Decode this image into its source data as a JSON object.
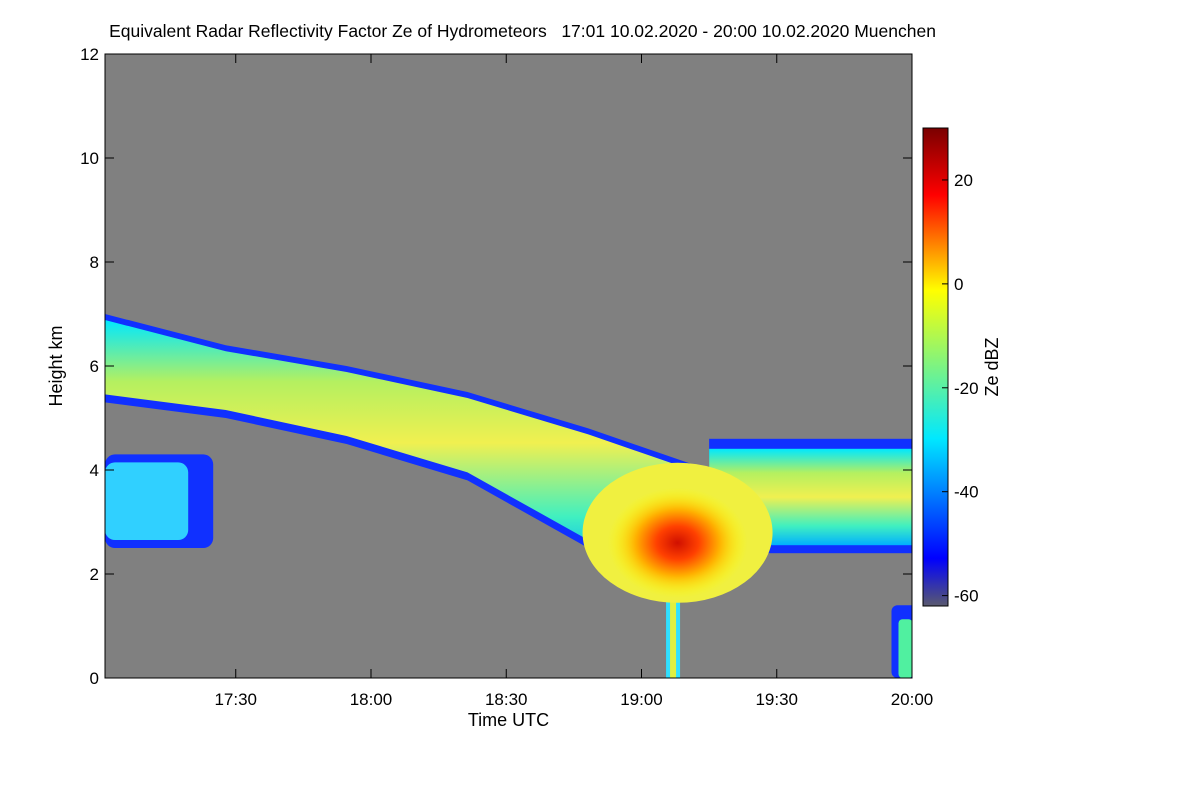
{
  "chart_data": {
    "type": "heatmap",
    "title": "Equivalent Radar Reflectivity Factor Ze of Hydrometeors   17:01 10.02.2020 - 20:00 10.02.2020 Muenchen",
    "xlabel": "Time UTC",
    "ylabel": "Height km",
    "colorbar_label": "Ze dBZ",
    "x_range": [
      "17:01",
      "20:00"
    ],
    "x_ticks": [
      "17:30",
      "18:00",
      "18:30",
      "19:00",
      "19:30",
      "20:00"
    ],
    "y_range": [
      0,
      12
    ],
    "y_ticks": [
      0,
      2,
      4,
      6,
      8,
      10,
      12
    ],
    "colorbar_range": [
      -62,
      30
    ],
    "colorbar_ticks": [
      -60,
      -40,
      -20,
      0,
      20
    ],
    "background_color": "#808080",
    "colormap": [
      "#5a5a6e",
      "#0000ff",
      "#00e8ff",
      "#ffff00",
      "#ff0000",
      "#7a0000"
    ],
    "features": [
      {
        "name": "upper stratiform layer",
        "time_start": "17:01",
        "time_end": "19:15",
        "height_bottom_km": [
          5.3,
          5.0,
          4.5,
          3.8,
          2.5,
          2.0
        ],
        "height_top_km": [
          7.0,
          6.4,
          6.0,
          5.5,
          4.8,
          4.0
        ],
        "max_ze_dbz": -5
      },
      {
        "name": "low-level echo",
        "time_start": "17:01",
        "time_end": "17:25",
        "height_bottom_km": 2.5,
        "height_top_km": 4.3,
        "max_ze_dbz": -25
      },
      {
        "name": "convective core",
        "time_center": "19:08",
        "height_center_km": 2.6,
        "max_ze_dbz": 20
      },
      {
        "name": "precipitation shaft",
        "time_center": "19:07",
        "height_bottom_km": 0,
        "height_top_km": 2.0,
        "max_ze_dbz": -5
      },
      {
        "name": "eastern layer",
        "time_start": "19:15",
        "time_end": "20:00",
        "height_bottom_km": 2.4,
        "height_top_km": 4.6,
        "max_ze_dbz": -10
      },
      {
        "name": "surface echo",
        "time_center": "19:59",
        "height_bottom_km": 0,
        "height_top_km": 1.4,
        "max_ze_dbz": -15
      }
    ]
  }
}
